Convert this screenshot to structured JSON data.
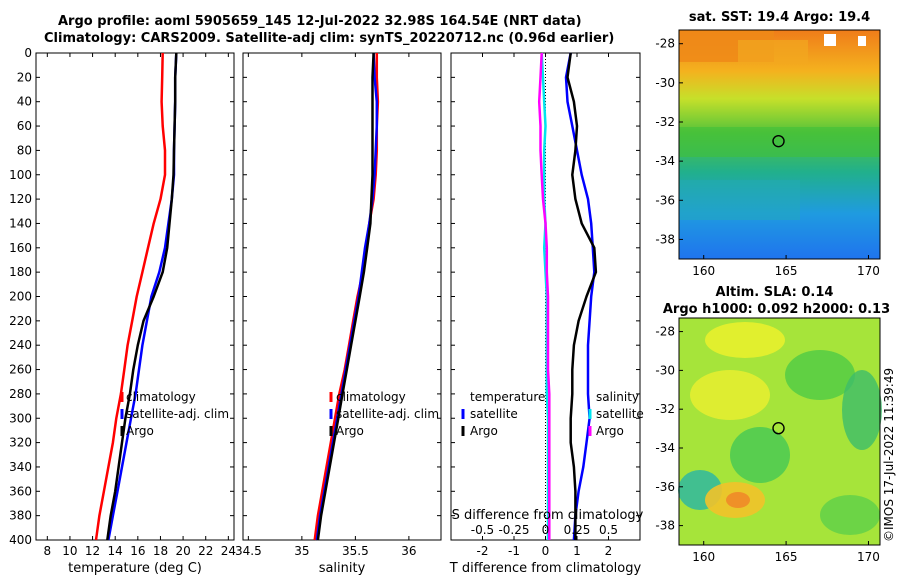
{
  "header": {
    "title_line1": "Argo profile: aoml 5905659_145 12-Jul-2022 32.98S 164.54E (NRT data)",
    "title_line2": "Climatology: CARS2009. Satellite-adj clim: synTS_20220712.nc (0.96d earlier)"
  },
  "colors": {
    "climatology": "#ff0000",
    "satellite": "#0000ff",
    "argo": "#000000",
    "temp_diff": "#ff00ff",
    "sal_diff": "#00e5ee"
  },
  "chart_data": [
    {
      "type": "line",
      "name": "temperature",
      "xlabel": "temperature (deg C)",
      "xlim": [
        7,
        24.5
      ],
      "xticks": [
        8,
        10,
        12,
        14,
        16,
        18,
        20,
        22,
        24
      ],
      "ylim": [
        400,
        0
      ],
      "yticks": [
        0,
        20,
        40,
        60,
        80,
        100,
        120,
        140,
        160,
        180,
        200,
        220,
        240,
        260,
        280,
        300,
        320,
        340,
        360,
        380,
        400
      ],
      "legend": [
        "climatology",
        "satellite-adj. clim",
        "Argo"
      ],
      "series": [
        {
          "name": "climatology",
          "color": "#ff0000",
          "depth": [
            0,
            20,
            40,
            60,
            80,
            100,
            120,
            140,
            160,
            180,
            200,
            220,
            240,
            260,
            280,
            300,
            320,
            340,
            360,
            380,
            400
          ],
          "values": [
            18.2,
            18.15,
            18.1,
            18.2,
            18.4,
            18.4,
            18.0,
            17.4,
            16.9,
            16.4,
            15.9,
            15.5,
            15.1,
            14.8,
            14.5,
            14.1,
            13.8,
            13.4,
            13.0,
            12.6,
            12.3
          ]
        },
        {
          "name": "satellite-adj. clim",
          "color": "#0000ff",
          "depth": [
            0,
            20,
            40,
            60,
            80,
            100,
            120,
            140,
            160,
            180,
            200,
            220,
            240,
            260,
            280,
            300,
            320,
            340,
            360,
            380,
            400
          ],
          "values": [
            19.4,
            19.3,
            19.3,
            19.25,
            19.2,
            19.2,
            19.0,
            18.7,
            18.4,
            17.9,
            17.2,
            16.8,
            16.4,
            16.1,
            15.8,
            15.4,
            15.0,
            14.6,
            14.2,
            13.8,
            13.4
          ]
        },
        {
          "name": "Argo",
          "color": "#000000",
          "depth": [
            0,
            20,
            40,
            60,
            80,
            100,
            120,
            140,
            160,
            180,
            200,
            220,
            240,
            260,
            280,
            300,
            320,
            340,
            360,
            380,
            400
          ],
          "values": [
            19.4,
            19.3,
            19.3,
            19.25,
            19.2,
            19.15,
            19.0,
            18.8,
            18.6,
            18.2,
            17.4,
            16.5,
            16.0,
            15.6,
            15.3,
            14.9,
            14.6,
            14.3,
            14.0,
            13.6,
            13.3
          ]
        }
      ]
    },
    {
      "type": "line",
      "name": "salinity",
      "xlabel": "salinity",
      "xlim": [
        34.45,
        36.3
      ],
      "xticks": [
        34.5,
        35,
        35.5,
        36
      ],
      "ylim": [
        400,
        0
      ],
      "series": [
        {
          "name": "climatology",
          "color": "#ff0000",
          "depth": [
            0,
            20,
            40,
            60,
            80,
            100,
            120,
            140,
            160,
            180,
            200,
            220,
            240,
            260,
            280,
            300,
            320,
            340,
            360,
            380,
            400
          ],
          "values": [
            35.7,
            35.7,
            35.71,
            35.7,
            35.7,
            35.69,
            35.67,
            35.63,
            35.6,
            35.57,
            35.52,
            35.48,
            35.44,
            35.4,
            35.35,
            35.31,
            35.27,
            35.23,
            35.19,
            35.15,
            35.12
          ]
        },
        {
          "name": "satellite-adj. clim",
          "color": "#0000ff",
          "depth": [
            0,
            20,
            40,
            60,
            80,
            100,
            120,
            140,
            160,
            180,
            200,
            220,
            240,
            260,
            280,
            300,
            320,
            340,
            360,
            380,
            400
          ],
          "values": [
            35.67,
            35.68,
            35.7,
            35.7,
            35.69,
            35.68,
            35.66,
            35.63,
            35.59,
            35.56,
            35.53,
            35.49,
            35.45,
            35.41,
            35.37,
            35.33,
            35.29,
            35.25,
            35.21,
            35.17,
            35.14
          ]
        },
        {
          "name": "Argo",
          "color": "#000000",
          "depth": [
            0,
            20,
            40,
            60,
            80,
            100,
            120,
            140,
            160,
            180,
            200,
            220,
            240,
            260,
            280,
            300,
            320,
            340,
            360,
            380,
            400
          ],
          "values": [
            35.67,
            35.66,
            35.66,
            35.66,
            35.66,
            35.66,
            35.65,
            35.64,
            35.61,
            35.58,
            35.54,
            35.5,
            35.46,
            35.42,
            35.38,
            35.34,
            35.3,
            35.26,
            35.22,
            35.18,
            35.15
          ]
        }
      ]
    },
    {
      "type": "line",
      "name": "difference",
      "xlabel": "T difference from climatology",
      "xlabel_top": "S difference from climatology",
      "xlim": [
        -3,
        3
      ],
      "xticks": [
        -2,
        -1,
        0,
        1,
        2
      ],
      "xticks_top_values": [
        -0.5,
        -0.25,
        0,
        0.25,
        0.5
      ],
      "xticks_top_labels": [
        "-0.5",
        "-0.25",
        "0",
        "0.25",
        "0.5"
      ],
      "ylim": [
        400,
        0
      ],
      "legend_left": [
        "temperature",
        "satellite",
        "Argo"
      ],
      "legend_right": [
        "salinity",
        "satellite",
        "Argo"
      ],
      "series": [
        {
          "name": "T satellite",
          "color": "#0000ff",
          "depth": [
            0,
            20,
            40,
            60,
            80,
            100,
            120,
            140,
            160,
            180,
            200,
            220,
            240,
            260,
            280,
            300,
            320,
            340,
            360,
            380,
            400
          ],
          "values": [
            0.8,
            0.65,
            0.7,
            0.85,
            1.0,
            1.15,
            1.35,
            1.45,
            1.5,
            1.55,
            1.45,
            1.4,
            1.35,
            1.35,
            1.35,
            1.4,
            1.3,
            1.2,
            1.05,
            0.95,
            0.9
          ]
        },
        {
          "name": "T Argo",
          "color": "#000000",
          "depth": [
            0,
            20,
            40,
            60,
            80,
            100,
            120,
            140,
            160,
            180,
            200,
            220,
            240,
            260,
            280,
            300,
            320,
            340,
            360,
            380,
            400
          ],
          "values": [
            0.8,
            0.7,
            0.9,
            1.0,
            0.95,
            0.85,
            0.95,
            1.15,
            1.55,
            1.6,
            1.3,
            1.05,
            0.9,
            0.85,
            0.85,
            0.8,
            0.8,
            0.9,
            0.95,
            0.95,
            0.95
          ]
        },
        {
          "name": "S satellite",
          "color": "#00e5ee",
          "depth": [
            0,
            20,
            40,
            60,
            80,
            100,
            120,
            140,
            160,
            180,
            200,
            220,
            240,
            260,
            280,
            300,
            320,
            340,
            360,
            380,
            400
          ],
          "values": [
            -0.03,
            -0.02,
            -0.01,
            0,
            -0.01,
            -0.01,
            -0.01,
            0,
            -0.01,
            0,
            0.01,
            0.01,
            0.01,
            0.01,
            0.01,
            0.02,
            0.02,
            0.02,
            0.02,
            0.02,
            0.02
          ]
        },
        {
          "name": "S Argo",
          "color": "#ff00ff",
          "depth": [
            0,
            20,
            40,
            60,
            80,
            100,
            120,
            140,
            160,
            180,
            200,
            220,
            240,
            260,
            280,
            300,
            320,
            340,
            360,
            380,
            400
          ],
          "values": [
            -0.03,
            -0.04,
            -0.05,
            -0.04,
            -0.04,
            -0.03,
            -0.02,
            0,
            0.01,
            0.01,
            0.02,
            0.02,
            0.02,
            0.02,
            0.03,
            0.03,
            0.03,
            0.03,
            0.03,
            0.03,
            0.03
          ]
        }
      ]
    },
    {
      "type": "heatmap",
      "name": "sst-map",
      "title": "sat. SST: 19.4 Argo: 19.4",
      "xlim": [
        158.5,
        170.7
      ],
      "ylim": [
        -39,
        -27.3
      ],
      "xticks": [
        160,
        165,
        170
      ],
      "yticks": [
        -28,
        -30,
        -32,
        -34,
        -36,
        -38
      ],
      "marker": {
        "lon": 164.54,
        "lat": -32.98
      }
    },
    {
      "type": "heatmap",
      "name": "sla-map",
      "title_line1": "Altim. SLA: 0.14",
      "title_line2": "Argo h1000: 0.092 h2000: 0.13",
      "xlim": [
        158.5,
        170.7
      ],
      "ylim": [
        -39,
        -27.3
      ],
      "xticks": [
        160,
        165,
        170
      ],
      "yticks": [
        -28,
        -30,
        -32,
        -34,
        -36,
        -38
      ],
      "marker": {
        "lon": 164.54,
        "lat": -32.98
      }
    }
  ],
  "credit": "©IMOS 17-Jul-2022 11:39:49"
}
